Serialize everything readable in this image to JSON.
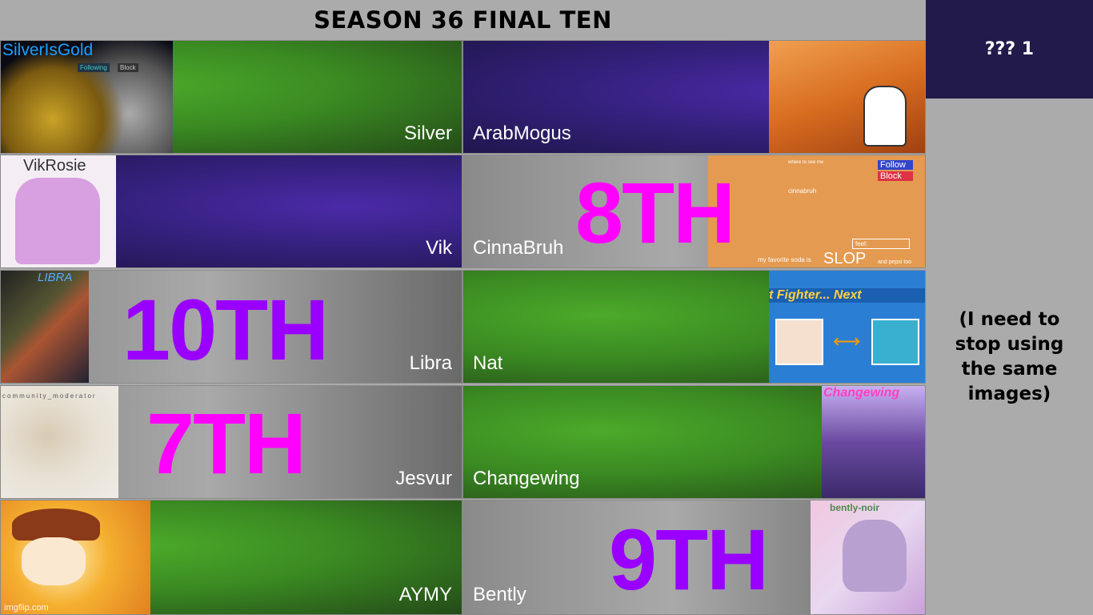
{
  "header": {
    "title": "SEASON 36 FINAL TEN"
  },
  "sidebar": {
    "top_label": "??? 1",
    "note": "(I need to stop using the same images)"
  },
  "colors": {
    "green": "#3a8a22",
    "purple": "#33207a",
    "gray": "#8a8a8a",
    "magenta": "#ff00ff",
    "violet": "#9900ff",
    "dark_navy": "#211a4a"
  },
  "contestants": {
    "silver": {
      "name": "Silver",
      "image_text": "SilverIsGold",
      "buttons": [
        "Following",
        "Block"
      ]
    },
    "arabmogus": {
      "name": "ArabMogus"
    },
    "vik": {
      "name": "Vik",
      "image_text": "VikRosie"
    },
    "cinnabruh": {
      "name": "CinnaBruh",
      "place": "8TH",
      "image_text": "cinnabruh",
      "buttons": [
        "Follow",
        "Block"
      ],
      "soda": "my favorite soda is",
      "slop": "SLOP",
      "pepsi": "and pepsi too",
      "feel": "feel:",
      "where": "where to see me"
    },
    "libra": {
      "name": "Libra",
      "place": "10TH",
      "image_text": "LIBRA"
    },
    "nat": {
      "name": "Nat",
      "image_text": "t Fighter... Next"
    },
    "jesvur": {
      "name": "Jesvur",
      "place": "7TH",
      "image_text": "community_moderator"
    },
    "changewing": {
      "name": "Changewing",
      "image_text": "Changewing"
    },
    "aymy": {
      "name": "AYMY"
    },
    "bently": {
      "name": "Bently",
      "place": "9TH",
      "image_text": "bently-noir"
    }
  },
  "watermark": "imgflip.com"
}
